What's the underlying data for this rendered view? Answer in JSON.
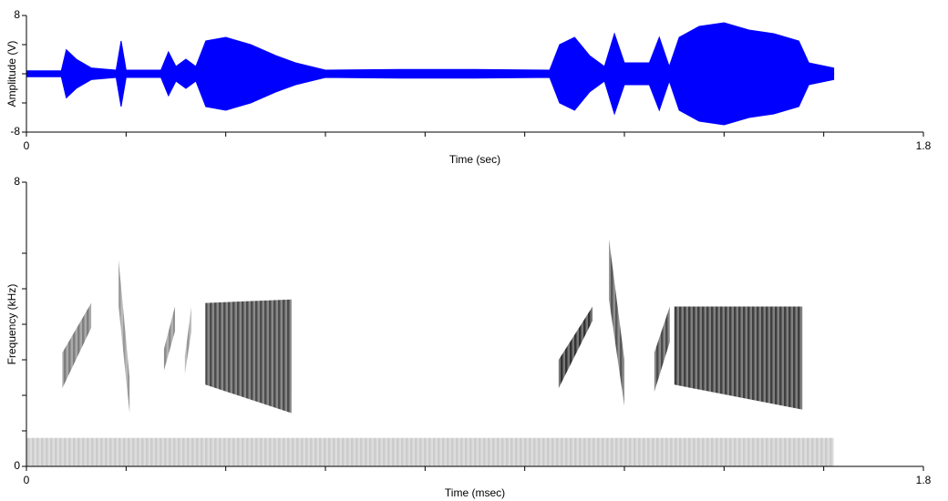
{
  "chart_data": [
    {
      "type": "waveform",
      "ylabel": "Amplitude (V)",
      "xlabel": "Time (sec)",
      "color": "#0000ff",
      "x": [
        0,
        0.07,
        0.08,
        0.1,
        0.13,
        0.18,
        0.19,
        0.2,
        0.27,
        0.285,
        0.3,
        0.32,
        0.34,
        0.36,
        0.4,
        0.45,
        0.5,
        0.54,
        0.6,
        0.75,
        0.9,
        1.05,
        1.07,
        1.1,
        1.13,
        1.16,
        1.18,
        1.2,
        1.25,
        1.27,
        1.29,
        1.31,
        1.35,
        1.4,
        1.45,
        1.5,
        1.55,
        1.57,
        1.62
      ],
      "values": [
        0.4,
        0.4,
        3.3,
        2.0,
        0.8,
        0.5,
        4.5,
        0.5,
        0.5,
        3.0,
        1.0,
        2.0,
        1.0,
        4.5,
        5.0,
        4.0,
        2.5,
        1.5,
        0.5,
        0.6,
        0.6,
        0.5,
        4.0,
        5.0,
        2.5,
        1.0,
        5.5,
        1.5,
        1.5,
        5.0,
        1.0,
        5.0,
        6.5,
        7.0,
        6.0,
        5.5,
        4.5,
        1.5,
        0.8
      ],
      "xlim": [
        0,
        1.8
      ],
      "xticks": [
        0,
        1.8
      ],
      "minor_xticks": [
        0.2,
        0.4,
        0.6,
        0.8,
        1.0,
        1.2,
        1.4,
        1.6
      ],
      "ylim": [
        -8,
        8
      ],
      "yticks": [
        -8,
        8
      ],
      "minor_yticks": [
        -4,
        0,
        4
      ]
    },
    {
      "type": "spectrogram",
      "ylabel": "Frequency (kHz)",
      "xlabel": "Time (msec)",
      "color": "#000000",
      "syllables": [
        {
          "t": [
            0.072,
            0.13
          ],
          "f_start": [
            2.2,
            3.2
          ],
          "f_end": [
            3.9,
            4.6
          ],
          "intensity": 0.5
        },
        {
          "t": [
            0.185,
            0.207
          ],
          "f_start": [
            4.5,
            5.8
          ],
          "f_end": [
            1.5,
            2.5
          ],
          "intensity": 0.4
        },
        {
          "t": [
            0.276,
            0.298
          ],
          "f_start": [
            2.7,
            3.3
          ],
          "f_end": [
            3.8,
            4.5
          ],
          "intensity": 0.45
        },
        {
          "t": [
            0.318,
            0.331
          ],
          "f_start": [
            2.6,
            3.1
          ],
          "f_end": [
            3.8,
            4.5
          ],
          "intensity": 0.4
        },
        {
          "t": [
            0.359,
            0.532
          ],
          "f_start": [
            2.3,
            4.6
          ],
          "f_end": [
            1.5,
            4.7
          ],
          "intensity": 0.7
        },
        {
          "t": [
            1.068,
            1.136
          ],
          "f_start": [
            2.2,
            3.0
          ],
          "f_end": [
            4.1,
            4.5
          ],
          "intensity": 0.8
        },
        {
          "t": [
            1.169,
            1.2
          ],
          "f_start": [
            4.7,
            6.4
          ],
          "f_end": [
            1.7,
            3.0
          ],
          "intensity": 0.65
        },
        {
          "t": [
            1.26,
            1.291
          ],
          "f_start": [
            2.1,
            3.2
          ],
          "f_end": [
            3.5,
            4.5
          ],
          "intensity": 0.7
        },
        {
          "t": [
            1.3,
            1.557
          ],
          "f_start": [
            2.3,
            4.5
          ],
          "f_end": [
            1.6,
            4.5
          ],
          "intensity": 0.75
        },
        {
          "t": [
            0.0,
            1.62
          ],
          "f_start": [
            0.0,
            0.8
          ],
          "f_end": [
            0.0,
            0.8
          ],
          "intensity": 0.2
        }
      ],
      "xlim": [
        0,
        1.8
      ],
      "xticks": [
        0,
        1.8
      ],
      "minor_xticks": [
        0.2,
        0.4,
        0.6,
        0.8,
        1.0,
        1.2,
        1.4,
        1.6
      ],
      "ylim": [
        0,
        8
      ],
      "yticks": [
        0,
        8
      ],
      "minor_yticks": [
        1,
        2,
        3,
        4,
        5,
        6
      ]
    }
  ]
}
